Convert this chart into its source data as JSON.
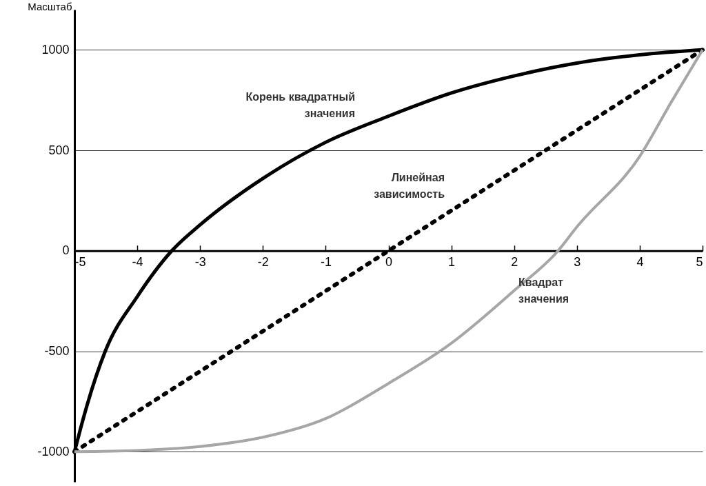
{
  "chart_data": {
    "type": "line",
    "ylabel": "Масштаб",
    "xlim": [
      -5,
      5
    ],
    "xticks": [
      -5,
      -4,
      -3,
      -2,
      -1,
      0,
      1,
      2,
      3,
      4,
      5
    ],
    "ylim": [
      -1150,
      1200
    ],
    "yticks": [
      -1000,
      -500,
      0,
      500,
      1000
    ],
    "grid": "y",
    "marker": "none",
    "series": [
      {
        "name": "Корень квадратный\nзначения",
        "color": "#000000",
        "line_style": "solid",
        "x": [
          -5,
          -4.9,
          -4.8,
          -4.51,
          -4,
          -3.45,
          -3,
          -2,
          -1,
          0,
          1,
          2,
          3,
          4,
          5
        ],
        "values": [
          -1000,
          -881,
          -769,
          -500,
          -228,
          0,
          129,
          360,
          540,
          670,
          785,
          870,
          934,
          975,
          1000
        ]
      },
      {
        "name": "Линейная\nзависимость",
        "color": "#000000",
        "line_style": "dotted",
        "x": [
          -5,
          -4,
          -3,
          -2,
          -1,
          0,
          1,
          2,
          3,
          4,
          5
        ],
        "values": [
          -1000,
          -800,
          -600,
          -400,
          -200,
          0,
          200,
          400,
          600,
          800,
          1000
        ]
      },
      {
        "name": "Квадрат\nзначения",
        "color": "#a6a6a6",
        "line_style": "solid",
        "x": [
          -5,
          -4,
          -3,
          -2,
          -1,
          0,
          1,
          2,
          2.7,
          3,
          4,
          4.5,
          5
        ],
        "values": [
          -1000,
          -994,
          -974,
          -928,
          -835,
          -660,
          -460,
          -198,
          0,
          119,
          470,
          739,
          1000
        ]
      }
    ]
  }
}
